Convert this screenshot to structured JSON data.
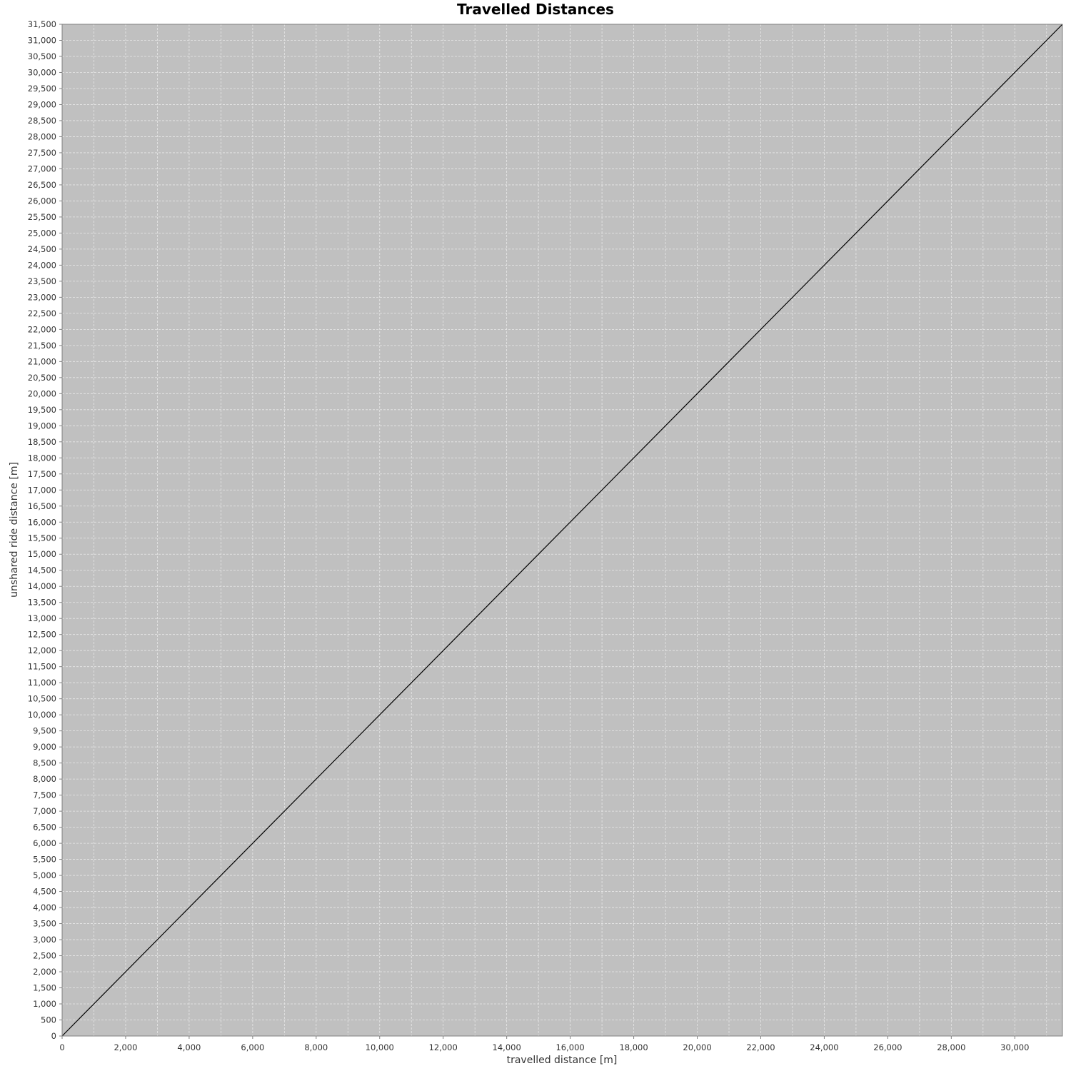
{
  "chart_data": {
    "type": "line",
    "title": "Travelled Distances",
    "xlabel": "travelled distance [m]",
    "ylabel": "unshared ride distance [m]",
    "xlim": [
      0,
      31500
    ],
    "ylim": [
      0,
      31500
    ],
    "x_ticks": [
      0,
      2000,
      4000,
      6000,
      8000,
      10000,
      12000,
      14000,
      16000,
      18000,
      20000,
      22000,
      24000,
      26000,
      28000,
      30000
    ],
    "x_grid_step": 1000,
    "y_tick_step": 500,
    "grid": true,
    "series": [
      {
        "x": [
          0,
          31500
        ],
        "y": [
          0,
          31500
        ]
      }
    ],
    "colors": {
      "plot_background": "#c0c0c0",
      "grid": "#e8e8e8",
      "line": "#000000",
      "outline": "#808080"
    }
  }
}
